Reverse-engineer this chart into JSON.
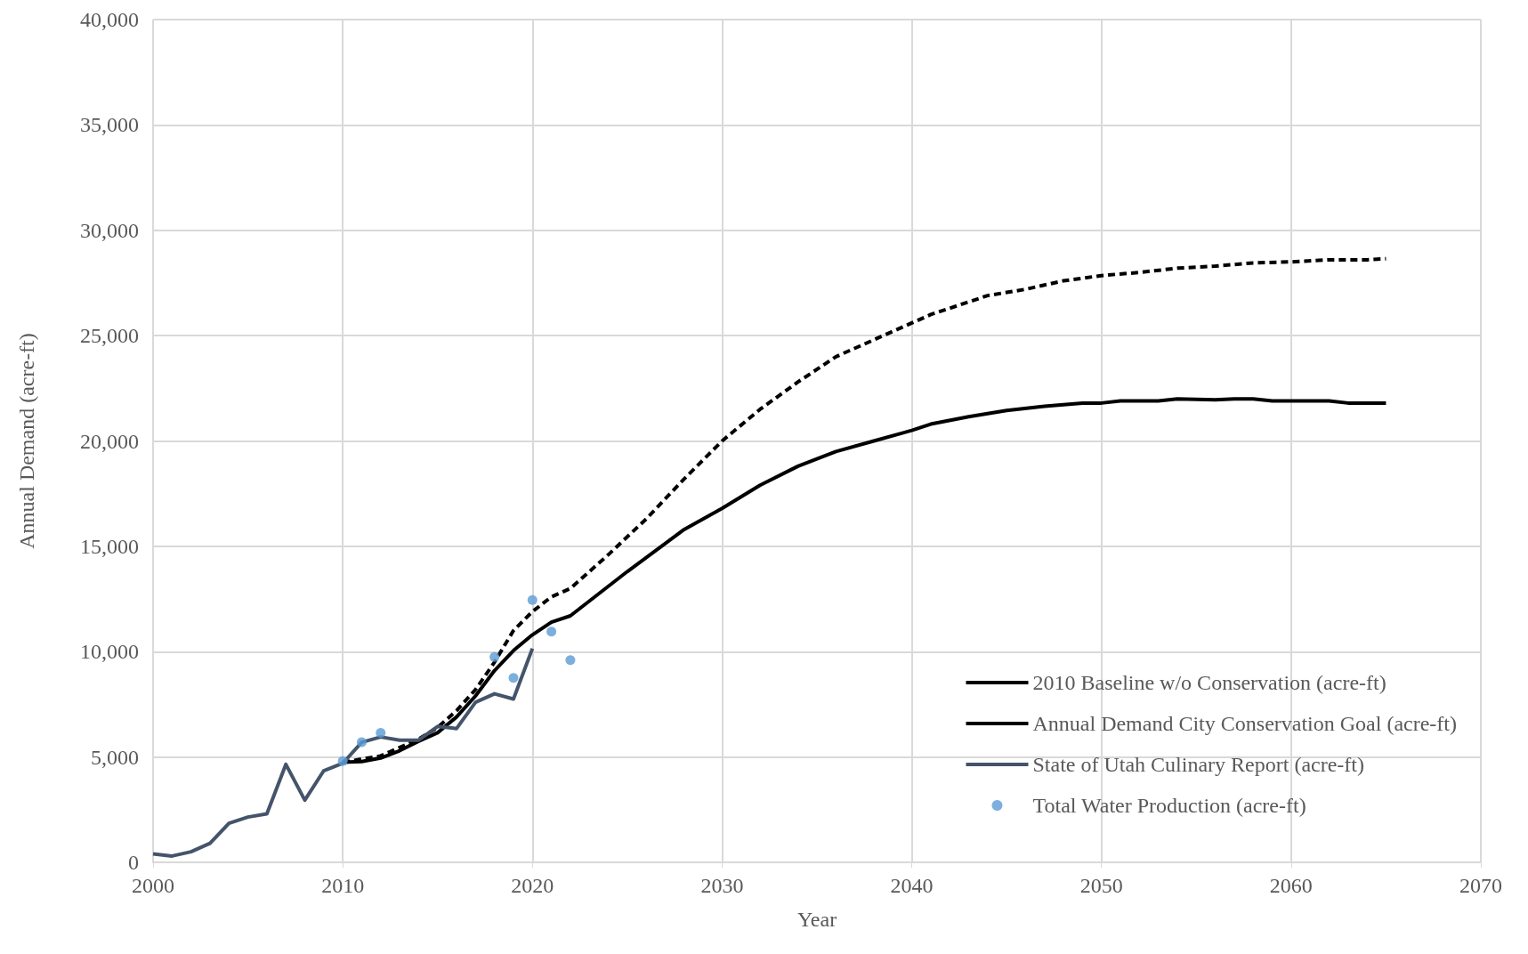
{
  "chart_data": {
    "type": "line",
    "xlabel": "Year",
    "ylabel": "Annual Demand (acre-ft)",
    "xlim": [
      2000,
      2070
    ],
    "xticks": [
      2000,
      2010,
      2020,
      2030,
      2040,
      2050,
      2060,
      2070
    ],
    "ylim": [
      0,
      40000
    ],
    "yticks": [
      {
        "value": 0,
        "label": "0"
      },
      {
        "value": 5000,
        "label": "5,000"
      },
      {
        "value": 10000,
        "label": "10,000"
      },
      {
        "value": 15000,
        "label": "15,000"
      },
      {
        "value": 20000,
        "label": "20,000"
      },
      {
        "value": 25000,
        "label": "25,000"
      },
      {
        "value": 30000,
        "label": "30,000"
      },
      {
        "value": 35000,
        "label": "35,000"
      },
      {
        "value": 40000,
        "label": "40,000"
      }
    ],
    "grid": true,
    "legend": "bottom right",
    "marker": "none",
    "series": [
      {
        "name": "2010 Baseline w/o Conservation (acre-ft)",
        "line_style": "dashed",
        "color": "#000000",
        "x": [
          2010,
          2012,
          2014,
          2015,
          2016,
          2017,
          2018,
          2019,
          2020,
          2021,
          2022,
          2024,
          2026,
          2028,
          2030,
          2032,
          2034,
          2036,
          2038,
          2040,
          2041,
          2043,
          2044,
          2046,
          2048,
          2050,
          2052,
          2054,
          2056,
          2058,
          2060,
          2062,
          2064,
          2065
        ],
        "values": [
          4750,
          5050,
          5850,
          6400,
          7200,
          8200,
          9500,
          11000,
          11900,
          12600,
          13000,
          14600,
          16300,
          18200,
          20000,
          21500,
          22800,
          24000,
          24800,
          25600,
          26000,
          26600,
          26900,
          27200,
          27600,
          27850,
          28000,
          28200,
          28300,
          28450,
          28500,
          28600,
          28600,
          28650
        ]
      },
      {
        "name": "Annual Demand City Conservation Goal (acre-ft)",
        "line_style": "solid",
        "color": "#000000",
        "x": [
          2010,
          2011,
          2012,
          2013,
          2014,
          2015,
          2016,
          2017,
          2018,
          2019,
          2020,
          2021,
          2022,
          2025,
          2028,
          2030,
          2032,
          2034,
          2036,
          2038,
          2040,
          2041,
          2043,
          2045,
          2047,
          2049,
          2050,
          2051,
          2053,
          2054,
          2056,
          2057,
          2058,
          2059,
          2062,
          2063,
          2065
        ],
        "values": [
          4750,
          4780,
          4950,
          5300,
          5750,
          6150,
          6900,
          7900,
          9100,
          10050,
          10800,
          11400,
          11700,
          13800,
          15800,
          16800,
          17900,
          18800,
          19500,
          20000,
          20500,
          20800,
          21150,
          21450,
          21650,
          21800,
          21800,
          21900,
          21900,
          22000,
          21950,
          22000,
          22000,
          21900,
          21900,
          21800,
          21800
        ]
      },
      {
        "name": "State of Utah Culinary Report (acre-ft)",
        "line_style": "solid",
        "color": "#44546a",
        "x": [
          2000,
          2001,
          2002,
          2003,
          2004,
          2005,
          2006,
          2007,
          2008,
          2009,
          2010,
          2011,
          2012,
          2013,
          2014,
          2015,
          2016,
          2017,
          2018,
          2019,
          2020
        ],
        "values": [
          400,
          300,
          500,
          900,
          1850,
          2150,
          2300,
          4650,
          2950,
          4350,
          4700,
          5700,
          5950,
          5800,
          5800,
          6450,
          6350,
          7600,
          8000,
          7750,
          10150
        ]
      },
      {
        "name": "Total Water Production (acre-ft)",
        "type": "scatter",
        "marker": "circle",
        "color": "#5b9bd5",
        "x": [
          2010,
          2011,
          2012,
          2018,
          2019,
          2020,
          2021,
          2022
        ],
        "values": [
          4800,
          5700,
          6150,
          9750,
          8750,
          12450,
          10950,
          9600
        ]
      }
    ]
  }
}
